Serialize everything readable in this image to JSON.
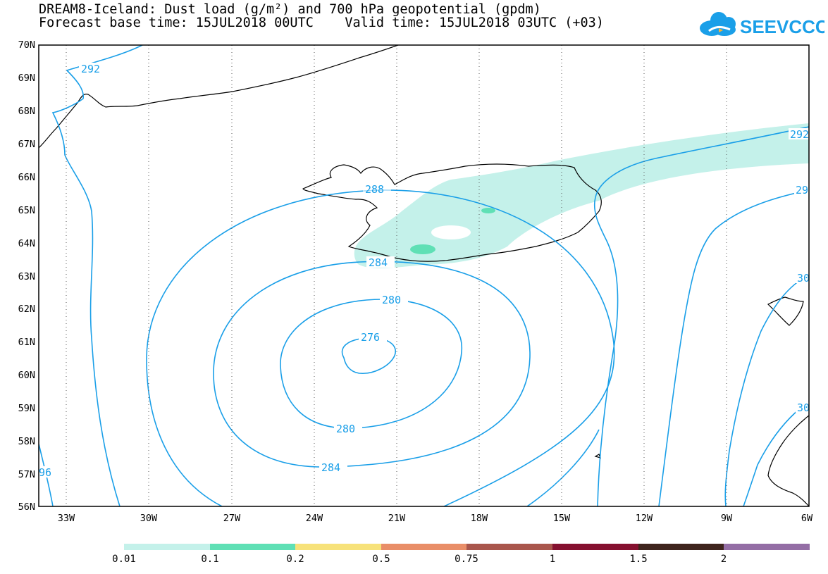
{
  "title_line1": "DREAM8-Iceland: Dust load (g/m²) and 700 hPa geopotential (gpdm)",
  "title_line2": "Forecast base time: 15JUL2018 00UTC    Valid time: 15JUL2018 03UTC (+03)",
  "logo_text": "SEEVCCC",
  "lat_labels": [
    "70N",
    "69N",
    "68N",
    "67N",
    "66N",
    "65N",
    "64N",
    "63N",
    "62N",
    "61N",
    "60N",
    "59N",
    "58N",
    "57N",
    "56N"
  ],
  "lon_labels": [
    "33W",
    "30W",
    "27W",
    "24W",
    "21W",
    "18W",
    "15W",
    "12W",
    "9W",
    "6W"
  ],
  "contour_labels": {
    "c292_top": "292",
    "c288": "288",
    "c284_top": "284",
    "c280_top": "280",
    "c276": "276",
    "c280_bottom": "280",
    "c284_bottom": "284",
    "c292_right": "292",
    "c29_partial": "29",
    "c30_a": "30",
    "c30_b": "30",
    "c96_partial": "96"
  },
  "colorbar": {
    "labels": [
      "0.01",
      "0.1",
      "0.2",
      "0.5",
      "0.75",
      "1",
      "1.5",
      "2"
    ],
    "colors": [
      "#c4f1ea",
      "#5fe0b5",
      "#f7e27a",
      "#e98e68",
      "#a9564c",
      "#85102f",
      "#3e241d",
      "#946ea5"
    ]
  },
  "colors": {
    "contour": "#1a9fe8",
    "coast": "#000000",
    "dust_light": "#c4f1ea",
    "dust_mid": "#5fe0b5"
  }
}
